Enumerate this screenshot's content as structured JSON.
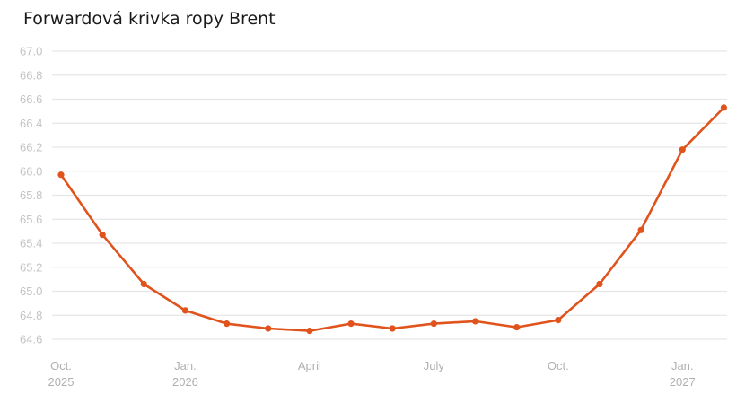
{
  "chart_data": {
    "type": "line",
    "title": "Forwardová krivka ropy Brent",
    "xlabel": "",
    "ylabel": "",
    "ylim": [
      64.6,
      67.0
    ],
    "yticks": [
      "64.6",
      "64.8",
      "65.0",
      "65.2",
      "65.4",
      "65.6",
      "65.8",
      "66.0",
      "66.2",
      "66.4",
      "66.6",
      "66.8",
      "67.0"
    ],
    "xticks": [
      {
        "label": "Oct.",
        "sub": "2025",
        "index": 0
      },
      {
        "label": "Jan.",
        "sub": "2026",
        "index": 3
      },
      {
        "label": "April",
        "sub": "",
        "index": 6
      },
      {
        "label": "July",
        "sub": "",
        "index": 9
      },
      {
        "label": "Oct.",
        "sub": "",
        "index": 12
      },
      {
        "label": "Jan.",
        "sub": "2027",
        "index": 15
      }
    ],
    "x": [
      "2025-10",
      "2025-11",
      "2025-12",
      "2026-01",
      "2026-02",
      "2026-03",
      "2026-04",
      "2026-05",
      "2026-06",
      "2026-07",
      "2026-08",
      "2026-09",
      "2026-10",
      "2026-11",
      "2026-12",
      "2027-01",
      "2027-02"
    ],
    "series": [
      {
        "values": [
          65.97,
          65.47,
          65.06,
          64.84,
          64.73,
          64.69,
          64.67,
          64.73,
          64.69,
          64.73,
          64.75,
          64.7,
          64.76,
          65.06,
          65.51,
          66.18,
          66.53
        ],
        "color": "#e0531c"
      }
    ],
    "grid": true,
    "legend": "none"
  }
}
